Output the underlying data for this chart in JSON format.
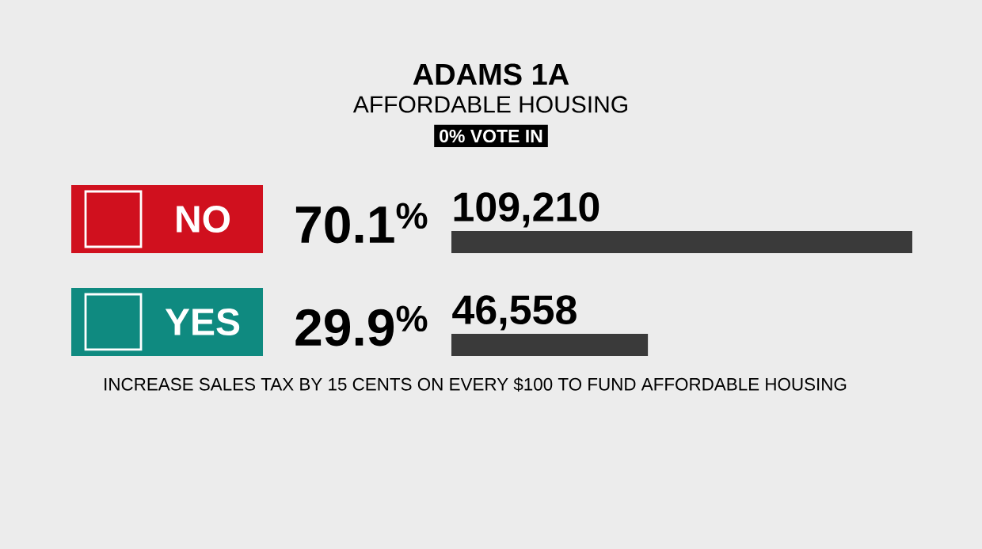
{
  "chart_data": {
    "type": "bar",
    "orientation": "horizontal",
    "title": "ADAMS 1A",
    "subtitle": "AFFORDABLE HOUSING",
    "categories": [
      "NO",
      "YES"
    ],
    "values": [
      109210,
      46558
    ],
    "value_labels": [
      "109,210",
      "46,558"
    ],
    "color": "#3a3a3a",
    "tick_labels": false,
    "annotations": [
      "0% VOTE IN",
      "70.1$^{%}$",
      "29.9$^{%}$",
      "INCREASE SALES TAX BY 15 CENTS ON EVERY $100 TO FUND AFFORDABLE HOUSING"
    ]
  }
}
